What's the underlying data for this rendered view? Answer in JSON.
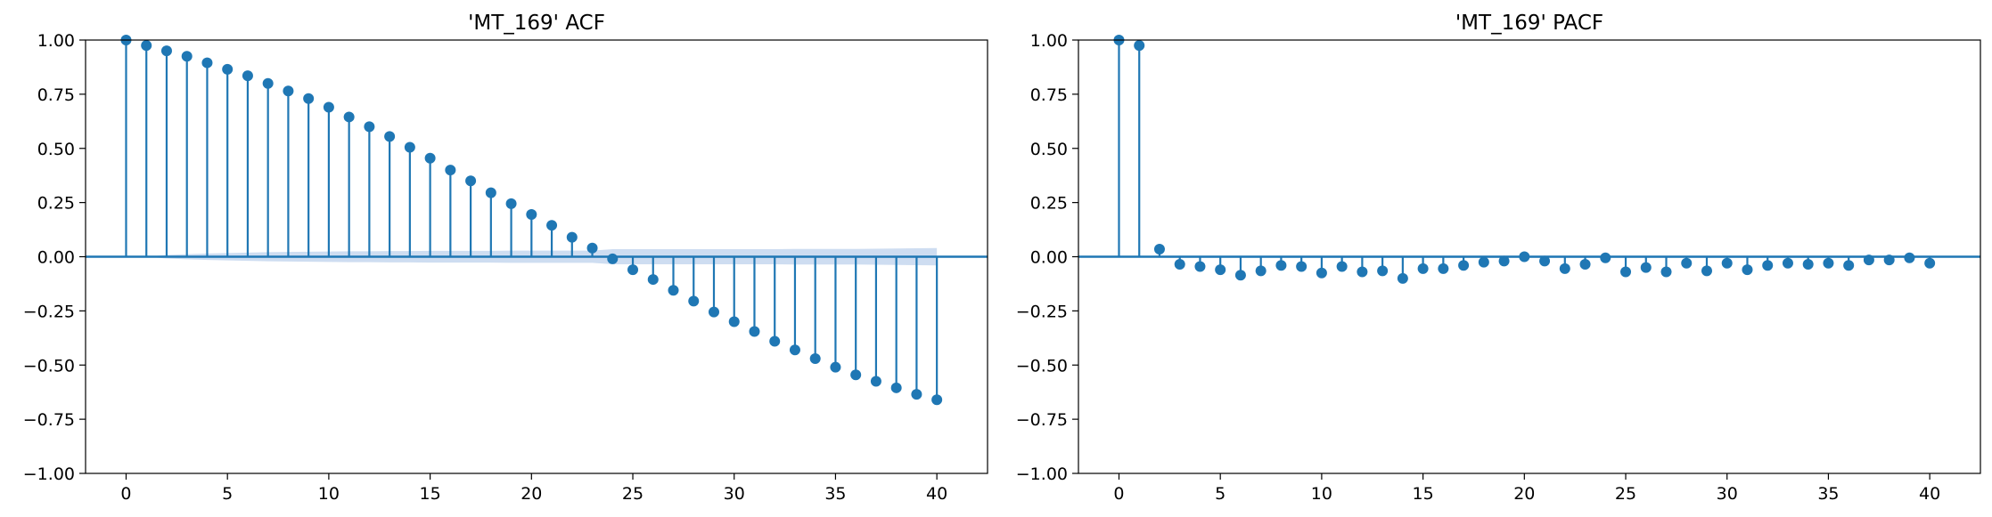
{
  "chart_data": [
    {
      "type": "stem",
      "title": "'MT_169' ACF",
      "xlabel": "",
      "ylabel": "",
      "xlim": [
        -2,
        42.5
      ],
      "ylim": [
        -1.0,
        1.0
      ],
      "xticks": [
        0,
        5,
        10,
        15,
        20,
        25,
        30,
        35,
        40
      ],
      "yticks": [
        -1.0,
        -0.75,
        -0.5,
        -0.25,
        0.0,
        0.25,
        0.5,
        0.75,
        1.0
      ],
      "ytick_labels": [
        "−1.00",
        "−0.75",
        "−0.50",
        "−0.25",
        "0.00",
        "0.25",
        "0.50",
        "0.75",
        "1.00"
      ],
      "grid": false,
      "color": "#1f77b4",
      "band_color": "#aec7e8",
      "x": [
        0,
        1,
        2,
        3,
        4,
        5,
        6,
        7,
        8,
        9,
        10,
        11,
        12,
        13,
        14,
        15,
        16,
        17,
        18,
        19,
        20,
        21,
        22,
        23,
        24,
        25,
        26,
        27,
        28,
        29,
        30,
        31,
        32,
        33,
        34,
        35,
        36,
        37,
        38,
        39,
        40
      ],
      "values": [
        1.0,
        0.975,
        0.95,
        0.925,
        0.895,
        0.865,
        0.835,
        0.8,
        0.765,
        0.73,
        0.69,
        0.645,
        0.6,
        0.555,
        0.505,
        0.455,
        0.4,
        0.35,
        0.295,
        0.245,
        0.195,
        0.145,
        0.09,
        0.04,
        -0.01,
        -0.06,
        -0.105,
        -0.155,
        -0.205,
        -0.255,
        -0.3,
        -0.345,
        -0.39,
        -0.43,
        -0.47,
        -0.51,
        -0.545,
        -0.575,
        -0.605,
        -0.635,
        -0.66
      ],
      "confidence_band": [
        0.0,
        0.0,
        0.008,
        0.012,
        0.015,
        0.017,
        0.019,
        0.021,
        0.022,
        0.023,
        0.024,
        0.025,
        0.025,
        0.026,
        0.026,
        0.027,
        0.027,
        0.027,
        0.027,
        0.028,
        0.028,
        0.028,
        0.028,
        0.028,
        0.035,
        0.035,
        0.035,
        0.035,
        0.035,
        0.035,
        0.035,
        0.035,
        0.035,
        0.036,
        0.036,
        0.036,
        0.036,
        0.037,
        0.038,
        0.039,
        0.04
      ]
    },
    {
      "type": "stem",
      "title": "'MT_169' PACF",
      "xlabel": "",
      "ylabel": "",
      "xlim": [
        -2,
        42.5
      ],
      "ylim": [
        -1.0,
        1.0
      ],
      "xticks": [
        0,
        5,
        10,
        15,
        20,
        25,
        30,
        35,
        40
      ],
      "yticks": [
        -1.0,
        -0.75,
        -0.5,
        -0.25,
        0.0,
        0.25,
        0.5,
        0.75,
        1.0
      ],
      "ytick_labels": [
        "−1.00",
        "−0.75",
        "−0.50",
        "−0.25",
        "0.00",
        "0.25",
        "0.50",
        "0.75",
        "1.00"
      ],
      "grid": false,
      "color": "#1f77b4",
      "band_color": "#aec7e8",
      "x": [
        0,
        1,
        2,
        3,
        4,
        5,
        6,
        7,
        8,
        9,
        10,
        11,
        12,
        13,
        14,
        15,
        16,
        17,
        18,
        19,
        20,
        21,
        22,
        23,
        24,
        25,
        26,
        27,
        28,
        29,
        30,
        31,
        32,
        33,
        34,
        35,
        36,
        37,
        38,
        39,
        40
      ],
      "values": [
        1.0,
        0.975,
        0.035,
        -0.035,
        -0.045,
        -0.06,
        -0.085,
        -0.065,
        -0.04,
        -0.045,
        -0.075,
        -0.045,
        -0.07,
        -0.065,
        -0.1,
        -0.055,
        -0.055,
        -0.04,
        -0.025,
        -0.02,
        0.0,
        -0.02,
        -0.055,
        -0.035,
        -0.005,
        -0.07,
        -0.05,
        -0.07,
        -0.03,
        -0.065,
        -0.03,
        -0.06,
        -0.04,
        -0.03,
        -0.035,
        -0.03,
        -0.04,
        -0.015,
        -0.015,
        -0.005,
        -0.03
      ],
      "confidence_band": [
        0.0,
        0.0,
        0.005,
        0.005,
        0.005,
        0.005,
        0.005,
        0.005,
        0.005,
        0.005,
        0.005,
        0.005,
        0.005,
        0.005,
        0.005,
        0.005,
        0.005,
        0.005,
        0.005,
        0.005,
        0.005,
        0.005,
        0.005,
        0.005,
        0.005,
        0.005,
        0.005,
        0.005,
        0.005,
        0.005,
        0.005,
        0.005,
        0.005,
        0.005,
        0.005,
        0.005,
        0.005,
        0.005,
        0.005,
        0.005,
        0.005
      ]
    }
  ]
}
